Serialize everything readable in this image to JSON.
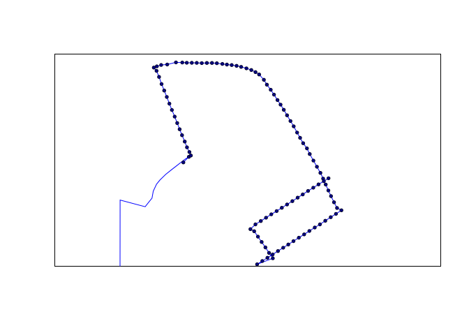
{
  "chart_data": {
    "type": "scatter",
    "title": "",
    "xlabel": "",
    "ylabel": "",
    "axes_visible": false,
    "frame": true,
    "xlim": [
      0,
      553
    ],
    "ylim": [
      0,
      304
    ],
    "colors": {
      "background": "#ffffff",
      "frame": "#000000",
      "track_line": "#0000ff",
      "points": "#000080"
    },
    "series": [
      {
        "kind": "line",
        "points": [
          [
            93.5,
            0.0
          ],
          [
            93.6,
            94.9
          ],
          [
            129.5,
            85.3
          ],
          [
            135.3,
            92.7
          ],
          [
            139.3,
            97.6
          ],
          [
            141.1,
            107.6
          ],
          [
            145.8,
            117.6
          ],
          [
            150.7,
            123.6
          ],
          [
            158.9,
            131.6
          ],
          [
            167.9,
            138.8
          ],
          [
            175.0,
            144.3
          ],
          [
            181.1,
            149.1
          ],
          [
            186.0,
            153.0
          ],
          [
            192.1,
            156.8
          ]
        ]
      },
      {
        "kind": "points",
        "points": [
          [
            184.2,
            148.8
          ],
          [
            192.1,
            156.8
          ],
          [
            195.0,
            158.7
          ],
          [
            192.9,
            163.7
          ],
          [
            189.4,
            170.4
          ],
          [
            186.2,
            178.7
          ],
          [
            182.3,
            187.8
          ],
          [
            178.9,
            196.3
          ],
          [
            175.4,
            205.2
          ],
          [
            171.8,
            214.4
          ],
          [
            167.8,
            223.9
          ],
          [
            164.2,
            233.0
          ],
          [
            160.5,
            242.6
          ],
          [
            156.8,
            251.8
          ],
          [
            153.0,
            261.1
          ],
          [
            149.4,
            271.3
          ],
          [
            145.8,
            280.0
          ],
          [
            141.9,
            284.7
          ],
          [
            146.2,
            286.4
          ],
          [
            152.4,
            288.4
          ],
          [
            161.1,
            289.1
          ],
          [
            173.6,
            292.1
          ],
          [
            182.7,
            291.9
          ],
          [
            189.1,
            291.6
          ],
          [
            196.3,
            291.5
          ],
          [
            203.4,
            291.4
          ],
          [
            210.6,
            291.1
          ],
          [
            217.9,
            291.3
          ],
          [
            225.2,
            291.3
          ],
          [
            232.2,
            290.9
          ],
          [
            240.1,
            289.9
          ],
          [
            246.6,
            289.0
          ],
          [
            253.5,
            288.3
          ],
          [
            260.5,
            287.2
          ],
          [
            267.0,
            285.7
          ],
          [
            274.6,
            283.6
          ],
          [
            281.6,
            281.2
          ],
          [
            287.6,
            278.2
          ],
          [
            292.8,
            274.8
          ],
          [
            299.6,
            267.2
          ],
          [
            303.9,
            260.2
          ],
          [
            309.4,
            252.9
          ],
          [
            314.1,
            245.9
          ],
          [
            319.1,
            238.2
          ],
          [
            323.5,
            231.6
          ],
          [
            328.1,
            224.2
          ],
          [
            332.8,
            216.3
          ],
          [
            337.7,
            208.1
          ],
          [
            342.3,
            200.5
          ],
          [
            347.2,
            191.6
          ],
          [
            351.5,
            184.0
          ],
          [
            355.9,
            176.3
          ],
          [
            361.3,
            168.9
          ],
          [
            365.3,
            160.8
          ],
          [
            370.6,
            151.4
          ],
          [
            375.6,
            142.6
          ],
          [
            380.6,
            133.8
          ],
          [
            384.5,
            125.6
          ],
          [
            388.2,
            117.1
          ],
          [
            392.0,
            108.6
          ],
          [
            395.8,
            100.5
          ],
          [
            400.1,
            91.7
          ],
          [
            404.4,
            83.5
          ],
          [
            410.7,
            80.2
          ],
          [
            402.9,
            75.1
          ],
          [
            395.4,
            70.3
          ],
          [
            387.6,
            65.2
          ],
          [
            379.9,
            60.0
          ],
          [
            372.5,
            55.5
          ],
          [
            364.8,
            50.6
          ],
          [
            357.3,
            45.7
          ],
          [
            349.7,
            40.9
          ],
          [
            342.0,
            36.0
          ],
          [
            334.6,
            31.2
          ],
          [
            327.3,
            26.6
          ],
          [
            319.8,
            21.8
          ],
          [
            312.2,
            16.9
          ],
          [
            304.7,
            12.2
          ],
          [
            297.3,
            7.5
          ],
          [
            289.9,
            2.8
          ],
          [
            312.4,
            11.4
          ],
          [
            307.0,
            19.2
          ],
          [
            301.8,
            27.0
          ],
          [
            296.4,
            34.8
          ],
          [
            291.1,
            42.4
          ],
          [
            285.7,
            50.2
          ],
          [
            280.3,
            53.2
          ],
          [
            287.5,
            60.0
          ],
          [
            295.2,
            64.8
          ],
          [
            302.7,
            69.6
          ],
          [
            310.2,
            74.4
          ],
          [
            317.9,
            79.1
          ],
          [
            325.3,
            83.8
          ],
          [
            332.8,
            88.5
          ],
          [
            340.4,
            93.3
          ],
          [
            348.0,
            98.3
          ],
          [
            355.3,
            102.9
          ],
          [
            362.9,
            107.9
          ],
          [
            370.4,
            112.6
          ],
          [
            377.9,
            117.3
          ],
          [
            385.5,
            121.9
          ],
          [
            392.2,
            126.1
          ]
        ]
      }
    ]
  }
}
